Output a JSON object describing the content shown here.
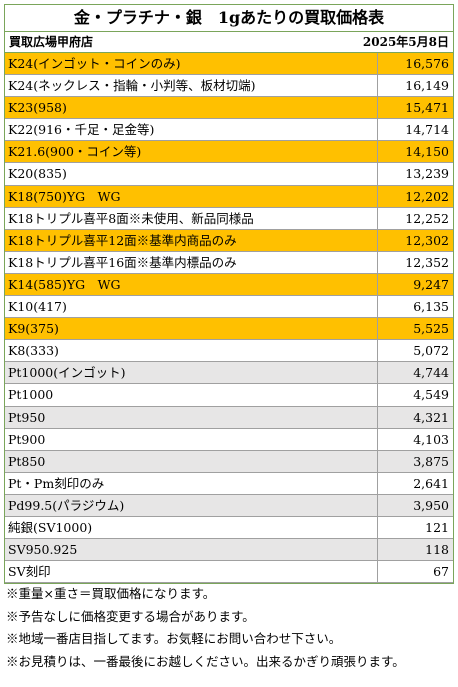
{
  "header": {
    "title": "金・プラチナ・銀　1gあたりの買取価格表",
    "store": "買取広場甲府店",
    "date": "2025年5月8日"
  },
  "table": {
    "rows": [
      {
        "label": "K24(インゴット・コインのみ)",
        "price": "16,576",
        "color": "#ffc000"
      },
      {
        "label": "K24(ネックレス・指輪・小判等、板材切端)",
        "price": "16,149",
        "color": "#ffffff"
      },
      {
        "label": "K23(958)",
        "price": "15,471",
        "color": "#ffc000"
      },
      {
        "label": "K22(916・千足・足金等)",
        "price": "14,714",
        "color": "#ffffff"
      },
      {
        "label": "K21.6(900・コイン等)",
        "price": "14,150",
        "color": "#ffc000"
      },
      {
        "label": "K20(835)",
        "price": "13,239",
        "color": "#ffffff"
      },
      {
        "label": "K18(750)YG　WG",
        "price": "12,202",
        "color": "#ffc000"
      },
      {
        "label": "K18トリプル喜平8面※未使用、新品同様品",
        "price": "12,252",
        "color": "#ffffff"
      },
      {
        "label": "K18トリプル喜平12面※基準内商品のみ",
        "price": "12,302",
        "color": "#ffc000"
      },
      {
        "label": "K18トリプル喜平16面※基準内標品のみ",
        "price": "12,352",
        "color": "#ffffff"
      },
      {
        "label": "K14(585)YG　WG",
        "price": "9,247",
        "color": "#ffc000"
      },
      {
        "label": "K10(417)",
        "price": "6,135",
        "color": "#ffffff"
      },
      {
        "label": "K9(375)",
        "price": "5,525",
        "color": "#ffc000"
      },
      {
        "label": "K8(333)",
        "price": "5,072",
        "color": "#ffffff"
      },
      {
        "label": "Pt1000(インゴット)",
        "price": "4,744",
        "color": "#e7e6e6"
      },
      {
        "label": "Pt1000",
        "price": "4,549",
        "color": "#ffffff"
      },
      {
        "label": "Pt950",
        "price": "4,321",
        "color": "#e7e6e6"
      },
      {
        "label": "Pt900",
        "price": "4,103",
        "color": "#ffffff"
      },
      {
        "label": "Pt850",
        "price": "3,875",
        "color": "#e7e6e6"
      },
      {
        "label": "Pt・Pm刻印のみ",
        "price": "2,641",
        "color": "#ffffff"
      },
      {
        "label": "Pd99.5(パラジウム)",
        "price": "3,950",
        "color": "#e7e6e6"
      },
      {
        "label": "純銀(SV1000)",
        "price": "121",
        "color": "#ffffff"
      },
      {
        "label": "SV950.925",
        "price": "118",
        "color": "#e7e6e6"
      },
      {
        "label": "SV刻印",
        "price": "67",
        "color": "#ffffff"
      }
    ]
  },
  "notes": [
    "※重量×重さ＝買取価格になります。",
    "※予告なしに価格変更する場合があります。",
    "※地域一番店目指してます。お気軽にお問い合わせ下さい。",
    "※お見積りは、一番最後にお越しください。出来るかぎり頑張ります。"
  ]
}
